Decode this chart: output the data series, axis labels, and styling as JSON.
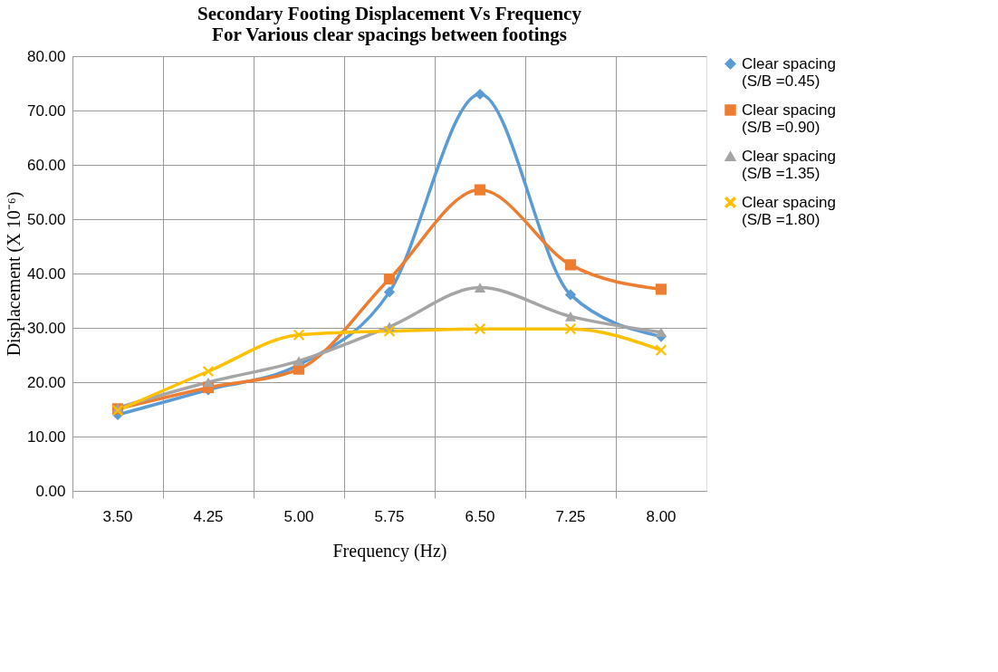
{
  "chart_data": {
    "type": "line",
    "title": [
      "Secondary Footing Displacement Vs Frequency",
      "For Various clear spacings between footings"
    ],
    "xlabel": "Frequency (Hz)",
    "ylabel": "Displacement (X 10⁻⁶)",
    "categories": [
      "3.50",
      "4.25",
      "5.00",
      "5.75",
      "6.50",
      "7.25",
      "8.00"
    ],
    "series": [
      {
        "name": "Clear spacing (S/B =0.45)",
        "color": "#5b9bd5",
        "marker": "diamond",
        "values": [
          14.0,
          18.6,
          23.2,
          36.6,
          73.0,
          36.1,
          28.4
        ]
      },
      {
        "name": "Clear spacing (S/B =0.90)",
        "color": "#ed7d31",
        "marker": "square",
        "values": [
          15.1,
          19.0,
          22.4,
          39.0,
          55.4,
          41.6,
          37.1
        ]
      },
      {
        "name": "Clear spacing (S/B =1.35)",
        "color": "#a5a5a5",
        "marker": "triangle",
        "values": [
          15.3,
          20.0,
          23.9,
          30.2,
          37.4,
          32.1,
          29.2
        ]
      },
      {
        "name": "Clear spacing (S/B =1.80)",
        "color": "#ffc000",
        "marker": "cross",
        "values": [
          14.8,
          22.0,
          28.7,
          29.4,
          29.8,
          29.8,
          25.9
        ]
      }
    ],
    "ylim": [
      0,
      80
    ],
    "yticks": [
      {
        "value": 0,
        "label": "0.00"
      },
      {
        "value": 10,
        "label": "10.00"
      },
      {
        "value": 20,
        "label": "20.00"
      },
      {
        "value": 30,
        "label": "30.00"
      },
      {
        "value": 40,
        "label": "40.00"
      },
      {
        "value": 50,
        "label": "50.00"
      },
      {
        "value": 60,
        "label": "60.00"
      },
      {
        "value": 70,
        "label": "70.00"
      },
      {
        "value": 80,
        "label": "80.00"
      }
    ],
    "grid": true,
    "legend": "right"
  }
}
